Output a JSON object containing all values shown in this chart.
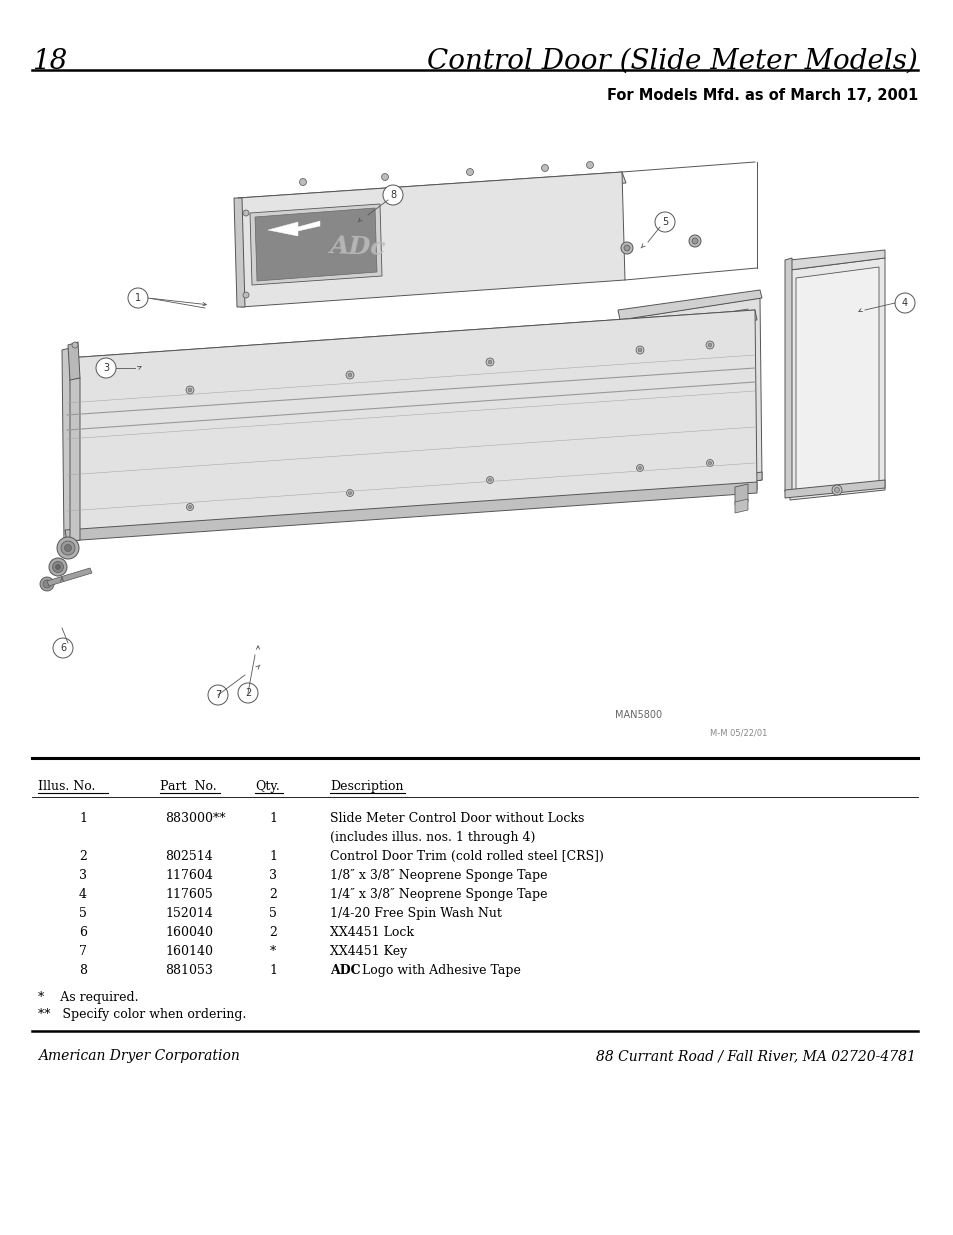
{
  "page_number": "18",
  "title": "Control Door (Slide Meter Models)",
  "subtitle": "For Models Mfd. as of March 17, 2001",
  "footer_left": "American Dryer Corporation",
  "footer_right": "88 Currant Road / Fall River, MA 02720-4781",
  "diagram_label": "MAN5800",
  "diagram_label2": "M-M 05/22/01",
  "table_headers": [
    "Illus. No.",
    "Part  No.",
    "Qty.",
    "Description"
  ],
  "table_rows": [
    [
      "1",
      "883000**",
      "1",
      "Slide Meter Control Door without Locks",
      "(includes illus. nos. 1 through 4)"
    ],
    [
      "2",
      "802514",
      "1",
      "Control Door Trim (cold rolled steel [CRS])",
      ""
    ],
    [
      "3",
      "117604",
      "3",
      "1/8″ x 3/8″ Neoprene Sponge Tape",
      ""
    ],
    [
      "4",
      "117605",
      "2",
      "1/4″ x 3/8″ Neoprene Sponge Tape",
      ""
    ],
    [
      "5",
      "152014",
      "5",
      "1/4-20 Free Spin Wash Nut",
      ""
    ],
    [
      "6",
      "160040",
      "2",
      "XX4451 Lock",
      ""
    ],
    [
      "7",
      "160140",
      "*",
      "XX4451 Key",
      ""
    ],
    [
      "8",
      "881053",
      "1",
      "ADC Logo with Adhesive Tape",
      ""
    ]
  ],
  "footnotes": [
    "*    As required.",
    "**   Specify color when ordering."
  ],
  "bg_color": "#ffffff",
  "text_color": "#000000",
  "line_color": "#000000",
  "diag_color": "#888888",
  "diag_face": "#e8e8e8",
  "diag_face2": "#d8d8d8",
  "diag_edge": "#555555"
}
